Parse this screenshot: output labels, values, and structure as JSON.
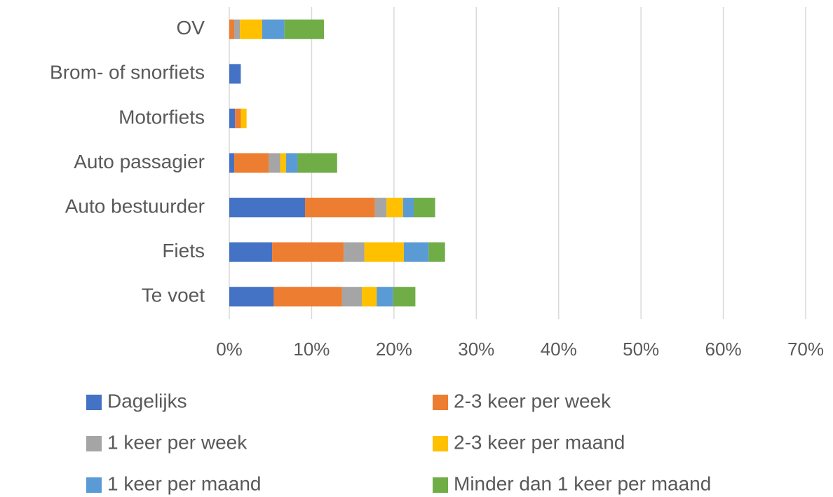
{
  "chart_data": {
    "type": "stacked-bar-horizontal",
    "categories": [
      "OV",
      "Brom- of snorfiets",
      "Motorfiets",
      "Auto passagier",
      "Auto bestuurder",
      "Fiets",
      "Te voet"
    ],
    "series": [
      {
        "name": "Dagelijks",
        "color": "#4472c4",
        "values": [
          0,
          1.4,
          0.7,
          0.6,
          9.2,
          5.2,
          5.4
        ]
      },
      {
        "name": "2-3 keer per week",
        "color": "#ed7d31",
        "values": [
          0.6,
          0,
          0.7,
          4.2,
          8.5,
          8.7,
          8.3
        ]
      },
      {
        "name": "1 keer per week",
        "color": "#a5a5a5",
        "values": [
          0.7,
          0,
          0,
          1.4,
          1.4,
          2.5,
          2.4
        ]
      },
      {
        "name": "2-3 keer per maand",
        "color": "#ffc000",
        "values": [
          2.7,
          0,
          0.7,
          0.7,
          2.0,
          4.8,
          1.8
        ]
      },
      {
        "name": "1 keer per maand",
        "color": "#5b9bd5",
        "values": [
          2.7,
          0,
          0,
          1.4,
          1.3,
          3.0,
          2.0
        ]
      },
      {
        "name": "Minder dan 1 keer per maand",
        "color": "#70ad47",
        "values": [
          4.8,
          0,
          0,
          4.8,
          2.6,
          2.0,
          2.7
        ]
      }
    ],
    "xlim": [
      0,
      70
    ],
    "xticks": [
      {
        "value": 0,
        "label": "0%"
      },
      {
        "value": 10,
        "label": "10%"
      },
      {
        "value": 20,
        "label": "20%"
      },
      {
        "value": 30,
        "label": "30%"
      },
      {
        "value": 40,
        "label": "40%"
      },
      {
        "value": 50,
        "label": "50%"
      },
      {
        "value": 60,
        "label": "60%"
      },
      {
        "value": 70,
        "label": "70%"
      }
    ],
    "grid": true,
    "legend": "bottom"
  }
}
